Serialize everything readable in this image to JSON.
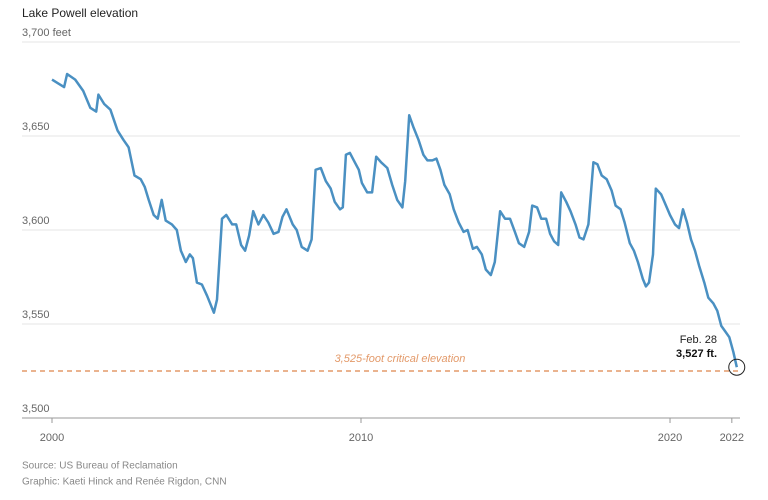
{
  "chart_data": {
    "type": "line",
    "title": "Lake Powell elevation",
    "x": [
      2000.0,
      2000.2,
      2000.39,
      2000.49,
      2000.75,
      2001.01,
      2001.24,
      2001.43,
      2001.5,
      2001.69,
      2001.89,
      2002.12,
      2002.31,
      2002.48,
      2002.67,
      2002.87,
      2003.0,
      2003.13,
      2003.29,
      2003.42,
      2003.55,
      2003.68,
      2003.88,
      2004.04,
      2004.17,
      2004.33,
      2004.46,
      2004.56,
      2004.69,
      2004.85,
      2005.02,
      2005.24,
      2005.34,
      2005.5,
      2005.64,
      2005.83,
      2005.96,
      2006.12,
      2006.25,
      2006.38,
      2006.51,
      2006.68,
      2006.84,
      2007.0,
      2007.17,
      2007.33,
      2007.46,
      2007.59,
      2007.79,
      2007.92,
      2008.08,
      2008.27,
      2008.4,
      2008.53,
      2008.7,
      2008.86,
      2009.02,
      2009.15,
      2009.32,
      2009.41,
      2009.51,
      2009.64,
      2009.8,
      2009.93,
      2010.03,
      2010.2,
      2010.36,
      2010.49,
      2010.65,
      2010.85,
      2011.01,
      2011.17,
      2011.34,
      2011.43,
      2011.56,
      2011.69,
      2011.86,
      2012.02,
      2012.15,
      2012.31,
      2012.44,
      2012.57,
      2012.7,
      2012.87,
      2013.0,
      2013.16,
      2013.32,
      2013.45,
      2013.62,
      2013.75,
      2013.91,
      2014.04,
      2014.2,
      2014.33,
      2014.5,
      2014.66,
      2014.82,
      2014.98,
      2015.11,
      2015.28,
      2015.44,
      2015.54,
      2015.7,
      2015.83,
      2015.99,
      2016.12,
      2016.25,
      2016.38,
      2016.48,
      2016.64,
      2016.78,
      2016.94,
      2017.07,
      2017.2,
      2017.36,
      2017.52,
      2017.65,
      2017.79,
      2017.95,
      2018.11,
      2018.24,
      2018.4,
      2018.53,
      2018.7,
      2018.83,
      2018.96,
      2019.12,
      2019.22,
      2019.32,
      2019.45,
      2019.54,
      2019.71,
      2019.87,
      2020.0,
      2020.16,
      2020.29,
      2020.42,
      2020.55,
      2020.68,
      2020.81,
      2020.94,
      2021.11,
      2021.24,
      2021.4,
      2021.53,
      2021.66,
      2021.79,
      2021.92,
      2022.05,
      2022.16
    ],
    "values": [
      3680,
      3678,
      3676,
      3683,
      3680,
      3674,
      3665,
      3663,
      3672,
      3667,
      3664,
      3653,
      3648,
      3644,
      3629,
      3627,
      3623,
      3616,
      3608,
      3606,
      3616,
      3605,
      3603,
      3600,
      3589,
      3583,
      3587,
      3585,
      3572,
      3571,
      3565,
      3556,
      3563,
      3606,
      3608,
      3603,
      3603,
      3592,
      3589,
      3597,
      3610,
      3603,
      3608,
      3604,
      3598,
      3599,
      3607,
      3611,
      3603,
      3600,
      3591,
      3589,
      3595,
      3632,
      3633,
      3626,
      3622,
      3615,
      3611,
      3612,
      3640,
      3641,
      3636,
      3632,
      3625,
      3620,
      3620,
      3639,
      3636,
      3633,
      3624,
      3616,
      3612,
      3626,
      3661,
      3655,
      3648,
      3640,
      3637,
      3637,
      3638,
      3632,
      3624,
      3619,
      3611,
      3604,
      3599,
      3600,
      3590,
      3591,
      3587,
      3579,
      3576,
      3583,
      3610,
      3606,
      3606,
      3599,
      3593,
      3591,
      3599,
      3613,
      3612,
      3606,
      3606,
      3598,
      3594,
      3592,
      3620,
      3615,
      3610,
      3603,
      3596,
      3595,
      3603,
      3636,
      3635,
      3629,
      3627,
      3621,
      3613,
      3611,
      3604,
      3593,
      3589,
      3583,
      3574,
      3570,
      3572,
      3587,
      3622,
      3619,
      3613,
      3608,
      3603,
      3601,
      3611,
      3604,
      3595,
      3589,
      3581,
      3572,
      3564,
      3561,
      3557,
      3549,
      3546,
      3543,
      3535,
      3527
    ],
    "color": "#4a90c2",
    "xlim": [
      2000,
      2022.2
    ],
    "xticks": [
      2000,
      2010,
      2020,
      2022
    ],
    "ylim": [
      3500,
      3700
    ],
    "yticks": [
      {
        "value": 3500,
        "label": "3,500"
      },
      {
        "value": 3550,
        "label": "3,550"
      },
      {
        "value": 3600,
        "label": "3,600"
      },
      {
        "value": 3650,
        "label": "3,650"
      },
      {
        "value": 3700,
        "label": "3,700 feet"
      }
    ],
    "grid": true,
    "reference_line": {
      "value": 3525,
      "label": "3,525-foot critical elevation",
      "color": "#e39a6a"
    },
    "end_annotation": {
      "date": "Feb. 28",
      "value_label": "3,527 ft."
    },
    "source": "Source: US Bureau of Reclamation",
    "credit": "Graphic: Kaeti Hinck and Renée Rigdon, CNN"
  }
}
